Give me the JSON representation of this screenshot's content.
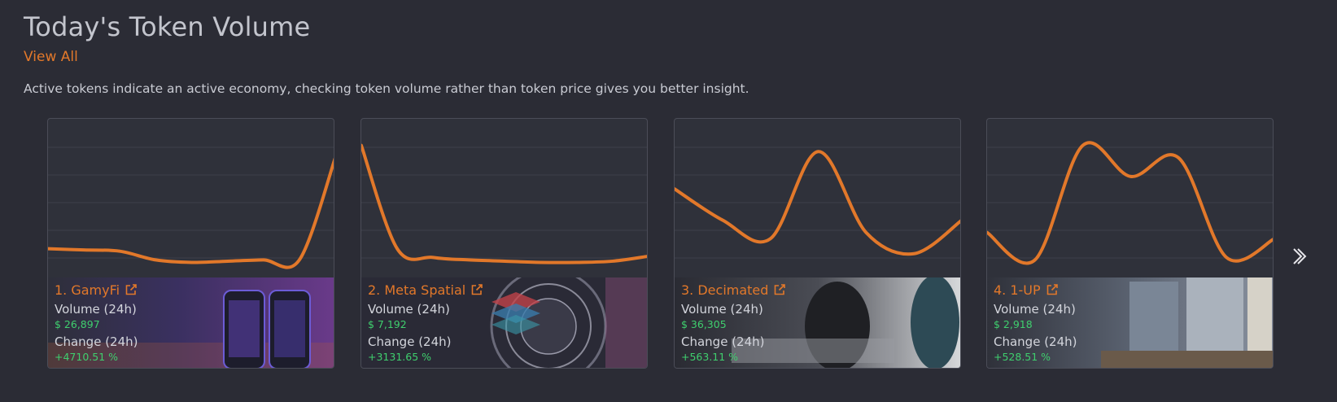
{
  "header": {
    "title": "Today's Token Volume",
    "view_all": "View All",
    "description": "Active tokens indicate an active economy, checking token volume rather than token price gives you better insight."
  },
  "colors": {
    "accent": "#e2782a",
    "positive": "#3fcf6e",
    "background": "#2b2c35"
  },
  "labels": {
    "volume": "Volume (24h)",
    "change": "Change (24h)"
  },
  "tokens": [
    {
      "name": "1. GamyFi",
      "volume": "$ 26,897",
      "change": "+4710.51 %",
      "spark": [
        0.12,
        0.11,
        0.1,
        0.03,
        0.01,
        0.02,
        0.03,
        0.03,
        0.85
      ]
    },
    {
      "name": "2. Meta Spatial",
      "volume": "$ 7,192",
      "change": "+3131.65 %",
      "spark": [
        0.95,
        0.12,
        0.05,
        0.03,
        0.02,
        0.01,
        0.01,
        0.02,
        0.06
      ]
    },
    {
      "name": "3. Decimated",
      "volume": "$ 36,305",
      "change": "+563.11 %",
      "spark": [
        0.6,
        0.35,
        0.2,
        0.9,
        0.25,
        0.08,
        0.35
      ]
    },
    {
      "name": "4. 1-UP",
      "volume": "$ 2,918",
      "change": "+528.51 %",
      "spark": [
        0.25,
        0.03,
        0.95,
        0.7,
        0.85,
        0.05,
        0.2
      ]
    }
  ],
  "navigation": {
    "next_icon": "chevron-right-icon"
  }
}
